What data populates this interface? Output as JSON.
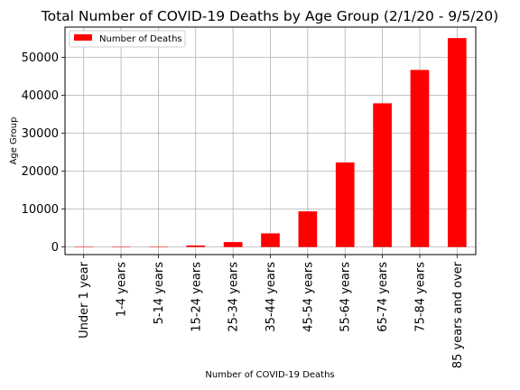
{
  "chart_data": {
    "type": "bar",
    "title": "Total Number of COVID-19 Deaths by Age Group (2/1/20 - 9/5/20)",
    "xlabel": "Number of COVID-19 Deaths",
    "ylabel": "Age Group",
    "categories": [
      "Under 1 year",
      "1-4 years",
      "5-14 years",
      "15-24 years",
      "25-34 years",
      "35-44 years",
      "45-54 years",
      "55-64 years",
      "65-74 years",
      "75-84 years",
      "85 years and over"
    ],
    "series": [
      {
        "name": "Number of Deaths",
        "color": "#ff0000",
        "values": [
          20,
          15,
          40,
          400,
          1300,
          3600,
          9400,
          22300,
          37900,
          46700,
          55100
        ]
      }
    ],
    "ylim": [
      -2000,
      58000
    ],
    "yticks": [
      0,
      10000,
      20000,
      30000,
      40000,
      50000
    ],
    "grid": true,
    "legend_position": "top-left"
  }
}
